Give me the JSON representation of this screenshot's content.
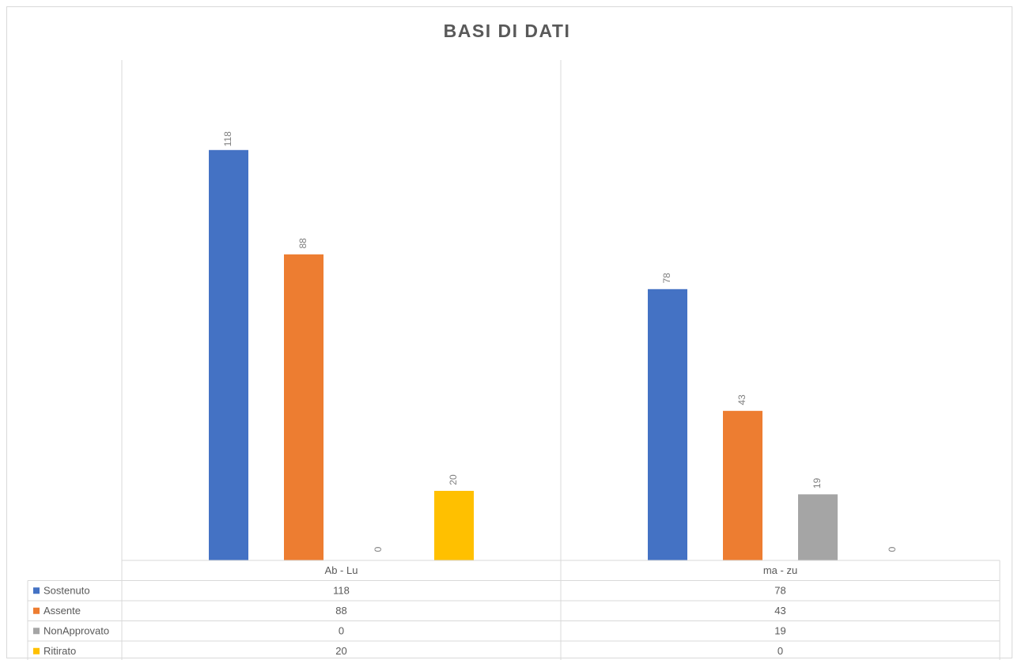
{
  "chart_data": {
    "type": "bar",
    "title": "BASI DI DATI",
    "categories": [
      "Ab - Lu",
      "ma - zu"
    ],
    "series": [
      {
        "name": "Sostenuto",
        "values": [
          118,
          78
        ],
        "color": "#4472C4"
      },
      {
        "name": "Assente",
        "values": [
          88,
          43
        ],
        "color": "#ED7D31"
      },
      {
        "name": "NonApprovato",
        "values": [
          0,
          19
        ],
        "color": "#A5A5A5"
      },
      {
        "name": "Ritirato",
        "values": [
          20,
          0
        ],
        "color": "#FFC000"
      }
    ],
    "ylim": [
      0,
      120
    ],
    "data_labels": true,
    "data_table": true,
    "gridlines": false
  }
}
